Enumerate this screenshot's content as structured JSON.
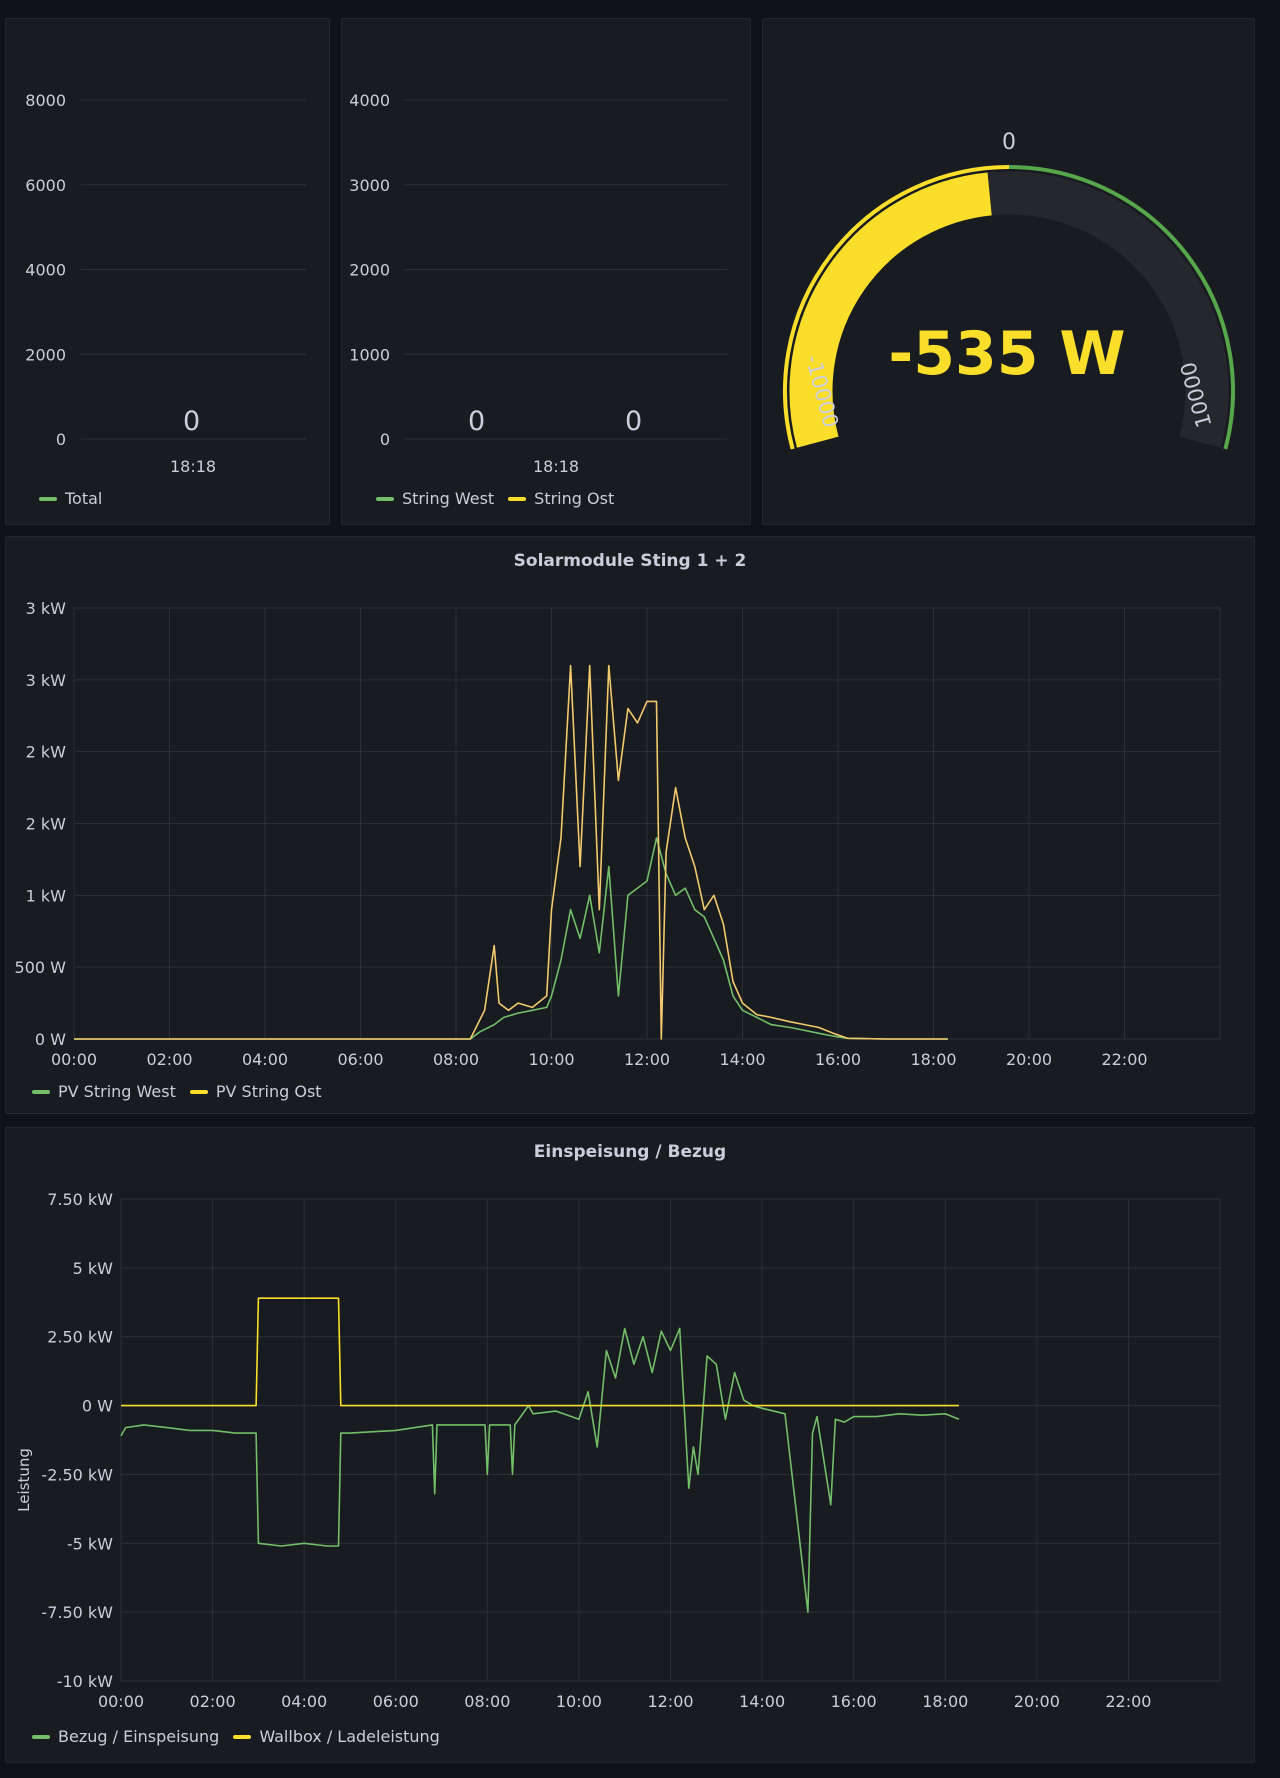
{
  "colors": {
    "green": "#73bf69",
    "yellow": "#fade2a",
    "orange": "#f2c96d",
    "grid": "#2c3035",
    "text": "#ccccdc",
    "panel": "#181b1f"
  },
  "stat_total": {
    "yticks": [
      "0",
      "2000",
      "4000",
      "6000",
      "8000"
    ],
    "value": "0",
    "time": "18:18",
    "legend": [
      "Total"
    ]
  },
  "stat_strings": {
    "yticks": [
      "0",
      "1000",
      "2000",
      "3000",
      "4000"
    ],
    "value_west": "0",
    "value_ost": "0",
    "time": "18:18",
    "legend": [
      "String West",
      "String Ost"
    ]
  },
  "gauge": {
    "value_text": "-535 W",
    "min_label": "-10000",
    "max_label": "10000",
    "zero_label": "0",
    "value": -535,
    "min": -10000,
    "max": 10000
  },
  "chart_data": [
    {
      "type": "line",
      "title": "Solarmodule Sting 1 + 2",
      "y_tick_labels": [
        "0 W",
        "500 W",
        "1 kW",
        "2 kW",
        "2 kW",
        "3 kW",
        "3 kW"
      ],
      "y_tick_values": [
        0,
        500,
        1000,
        1500,
        2000,
        2500,
        3000
      ],
      "x_tick_labels": [
        "00:00",
        "02:00",
        "04:00",
        "06:00",
        "08:00",
        "10:00",
        "12:00",
        "14:00",
        "16:00",
        "18:00",
        "20:00",
        "22:00"
      ],
      "xlim": [
        0,
        24
      ],
      "ylim": [
        0,
        3000
      ],
      "series": [
        {
          "name": "PV String West",
          "color": "#73bf69",
          "x": [
            0,
            8.3,
            8.5,
            8.8,
            9.0,
            9.3,
            9.6,
            9.9,
            10.0,
            10.2,
            10.4,
            10.6,
            10.8,
            11.0,
            11.2,
            11.4,
            11.6,
            11.8,
            12.0,
            12.2,
            12.4,
            12.6,
            12.8,
            13.0,
            13.2,
            13.4,
            13.6,
            13.8,
            14.0,
            14.3,
            14.6,
            15.0,
            15.3,
            15.6,
            15.9,
            16.2,
            17.0,
            18.3
          ],
          "y": [
            0,
            0,
            50,
            100,
            150,
            180,
            200,
            220,
            300,
            550,
            900,
            700,
            1000,
            600,
            1200,
            300,
            1000,
            1050,
            1100,
            1400,
            1150,
            1000,
            1050,
            900,
            850,
            700,
            550,
            300,
            200,
            150,
            100,
            80,
            60,
            40,
            20,
            5,
            0,
            0
          ]
        },
        {
          "name": "PV String Ost",
          "color": "#f2c96d",
          "x": [
            0,
            8.3,
            8.6,
            8.8,
            8.9,
            9.1,
            9.3,
            9.6,
            9.9,
            10.0,
            10.2,
            10.4,
            10.6,
            10.8,
            11.0,
            11.2,
            11.4,
            11.6,
            11.8,
            12.0,
            12.2,
            12.3,
            12.4,
            12.6,
            12.8,
            13.0,
            13.2,
            13.4,
            13.6,
            13.8,
            14.0,
            14.3,
            14.6,
            15.0,
            15.3,
            15.6,
            15.9,
            16.2,
            17.0,
            18.3
          ],
          "y": [
            0,
            0,
            200,
            650,
            250,
            200,
            250,
            220,
            300,
            900,
            1400,
            2600,
            1200,
            2600,
            900,
            2600,
            1800,
            2300,
            2200,
            2350,
            2350,
            0,
            1300,
            1750,
            1400,
            1200,
            900,
            1000,
            800,
            400,
            250,
            170,
            150,
            120,
            100,
            80,
            40,
            5,
            0,
            0
          ]
        }
      ]
    },
    {
      "type": "line",
      "title": "Einspeisung / Bezug",
      "ylabel": "Leistung",
      "y_tick_labels": [
        "-10 kW",
        "-7.50 kW",
        "-5 kW",
        "-2.50 kW",
        "0 W",
        "2.50 kW",
        "5 kW",
        "7.50 kW"
      ],
      "y_tick_values": [
        -10000,
        -7500,
        -5000,
        -2500,
        0,
        2500,
        5000,
        7500
      ],
      "x_tick_labels": [
        "00:00",
        "02:00",
        "04:00",
        "06:00",
        "08:00",
        "10:00",
        "12:00",
        "14:00",
        "16:00",
        "18:00",
        "20:00",
        "22:00"
      ],
      "xlim": [
        0,
        24
      ],
      "ylim": [
        -10000,
        7500
      ],
      "series": [
        {
          "name": "Bezug / Einspeisung",
          "color": "#73bf69",
          "x": [
            0,
            0.1,
            0.5,
            1.0,
            1.5,
            2.0,
            2.5,
            2.95,
            3.0,
            3.5,
            4.0,
            4.5,
            4.75,
            4.8,
            5.0,
            6.0,
            6.8,
            6.85,
            6.9,
            7.0,
            7.5,
            7.95,
            8.0,
            8.05,
            8.1,
            8.5,
            8.55,
            8.6,
            8.9,
            9.0,
            9.5,
            10.0,
            10.2,
            10.4,
            10.6,
            10.8,
            11.0,
            11.2,
            11.4,
            11.6,
            11.8,
            12.0,
            12.2,
            12.4,
            12.5,
            12.6,
            12.8,
            13.0,
            13.2,
            13.4,
            13.6,
            13.8,
            14.0,
            14.5,
            15.0,
            15.1,
            15.2,
            15.5,
            15.6,
            15.8,
            16.0,
            16.5,
            17.0,
            17.5,
            18.0,
            18.3
          ],
          "y": [
            -1100,
            -800,
            -700,
            -800,
            -900,
            -900,
            -1000,
            -1000,
            -5000,
            -5100,
            -5000,
            -5100,
            -5100,
            -1000,
            -1000,
            -900,
            -700,
            -3200,
            -700,
            -700,
            -700,
            -700,
            -2500,
            -700,
            -700,
            -700,
            -2500,
            -700,
            0,
            -300,
            -200,
            -500,
            500,
            -1500,
            2000,
            1000,
            2800,
            1500,
            2500,
            1200,
            2700,
            2000,
            2800,
            -3000,
            -1500,
            -2500,
            1800,
            1500,
            -500,
            1200,
            200,
            0,
            -100,
            -300,
            -7500,
            -1000,
            -400,
            -3600,
            -500,
            -600,
            -400,
            -400,
            -300,
            -350,
            -300,
            -500
          ]
        },
        {
          "name": "Wallbox / Ladeleistung",
          "color": "#fade2a",
          "x": [
            0,
            2.95,
            3.0,
            4.75,
            4.8,
            18.3
          ],
          "y": [
            0,
            0,
            3900,
            3900,
            0,
            0
          ]
        }
      ]
    }
  ]
}
